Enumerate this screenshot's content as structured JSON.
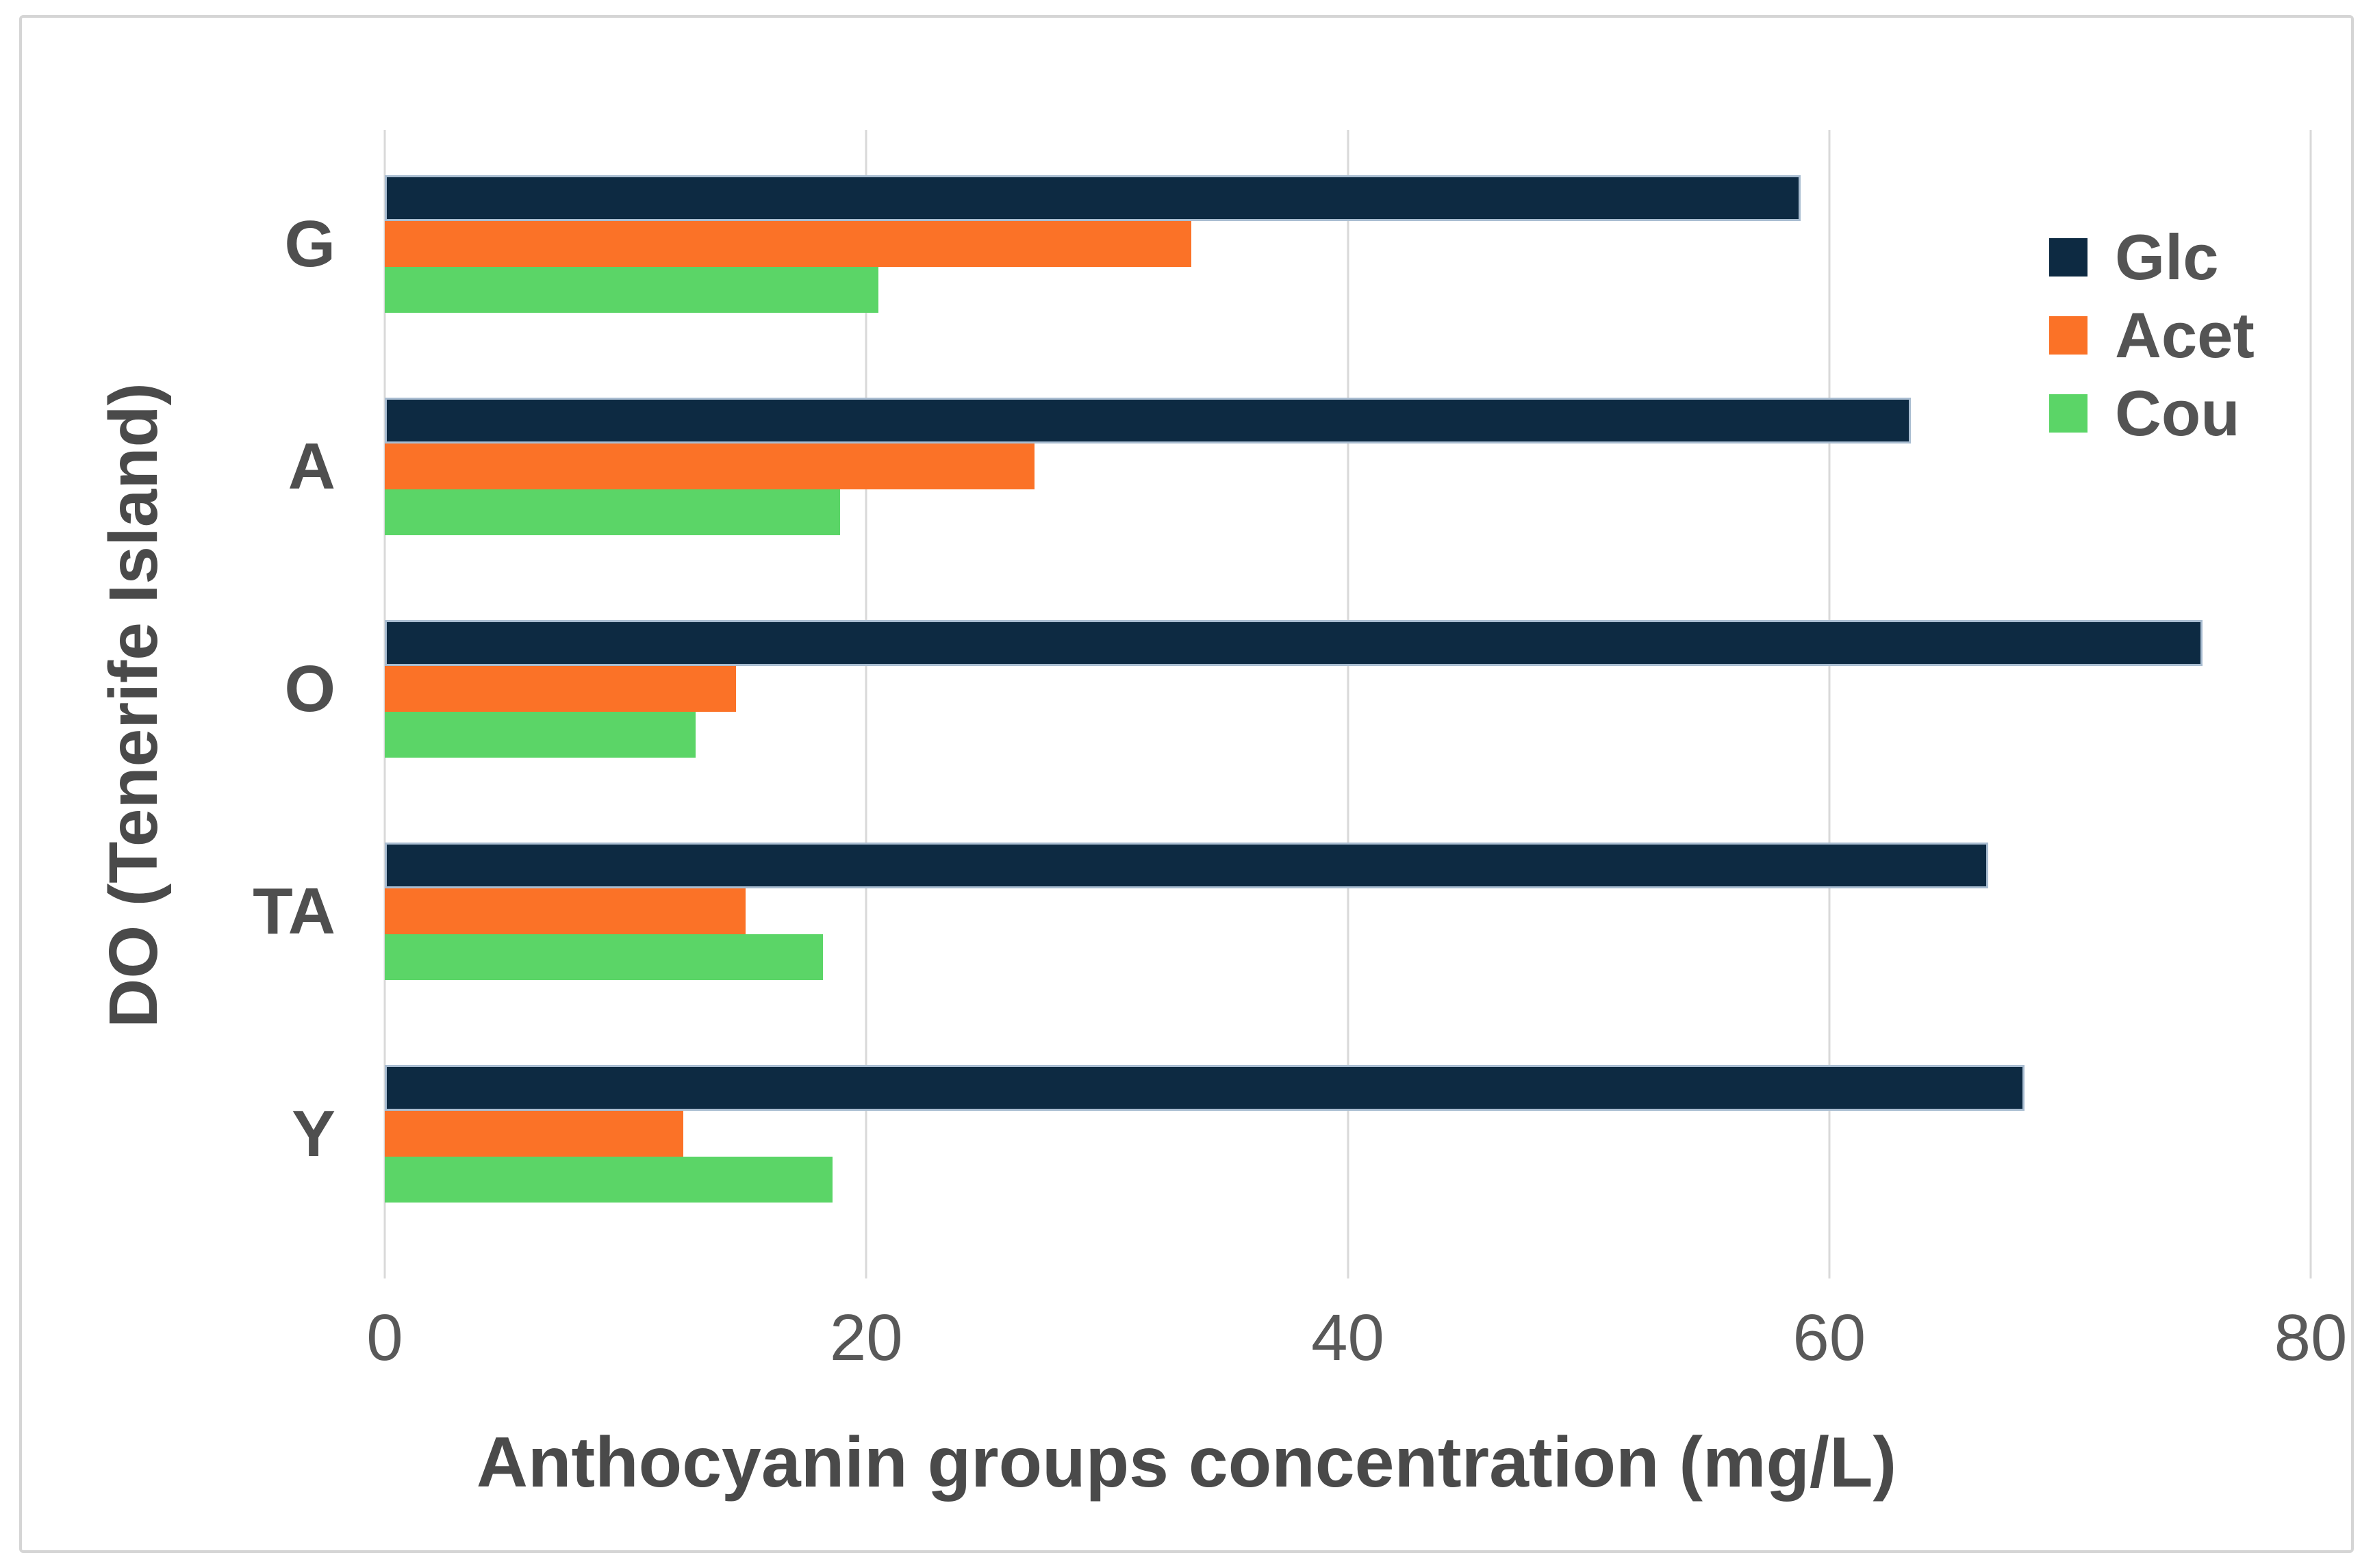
{
  "chart_data": {
    "type": "bar",
    "orientation": "horizontal",
    "xlabel": "Anthocyanin groups concentration (mg/L)",
    "ylabel": "DO (Tenerife Island)",
    "categories": [
      "G",
      "A",
      "O",
      "TA",
      "Y"
    ],
    "series": [
      {
        "name": "Glc",
        "color": "#0d2a42",
        "values": [
          58.8,
          63.4,
          75.5,
          66.6,
          68.1
        ]
      },
      {
        "name": "Acet",
        "color": "#fb7227",
        "values": [
          33.5,
          27.0,
          14.6,
          15.0,
          12.4
        ]
      },
      {
        "name": "Cou",
        "color": "#5bd567",
        "values": [
          20.5,
          18.9,
          12.9,
          18.2,
          18.6
        ]
      }
    ],
    "xlim": [
      0,
      80
    ],
    "xticks": [
      0,
      20,
      40,
      60,
      80
    ],
    "grid": true,
    "legend_position": "right",
    "colors": {
      "gridline": "#d9d9d9",
      "tick_text": "#595959",
      "title_text": "#4a4a4a",
      "glc_bar_border": "#a9bdd1",
      "frame_border": "#d5d5d5",
      "background": "#ffffff"
    }
  }
}
